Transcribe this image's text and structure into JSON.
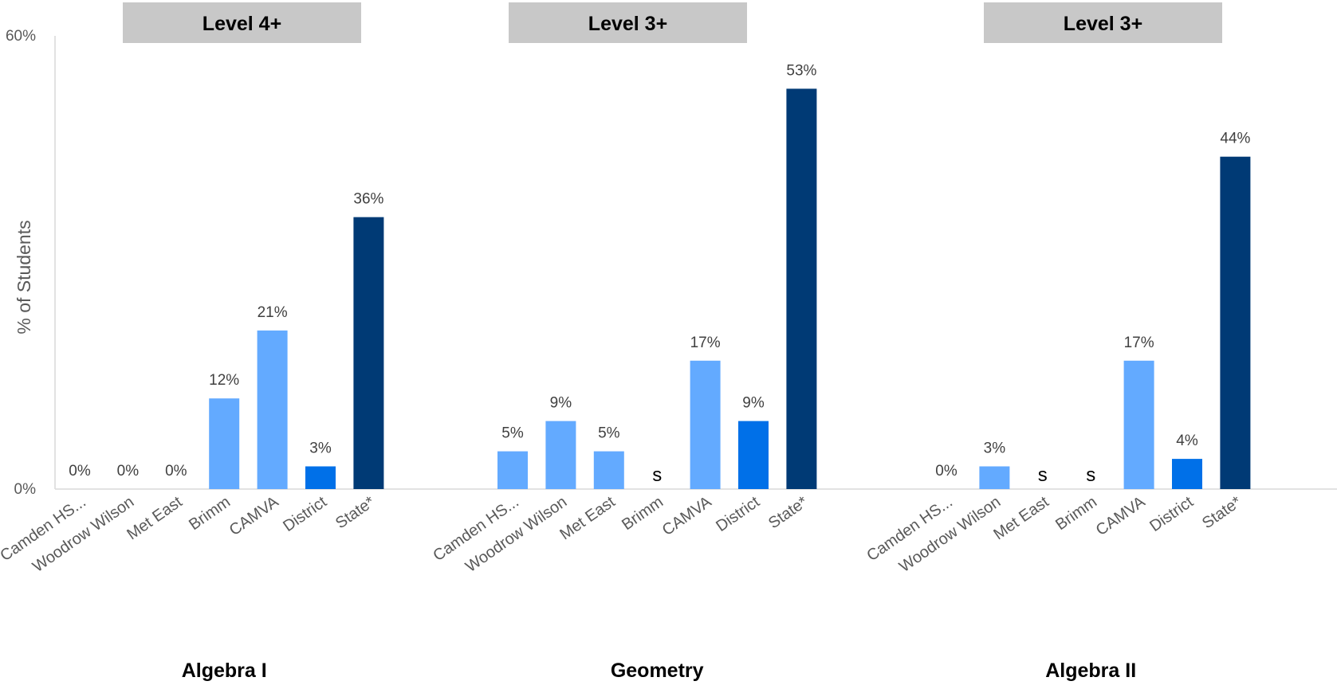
{
  "chart_data": {
    "type": "bar",
    "ylabel": "% of Students",
    "ylim": [
      0,
      60
    ],
    "yticks": [
      "0%",
      "60%"
    ],
    "grid": false,
    "legend": "none",
    "colors": {
      "school": "#63AAFF",
      "district": "#0070E8",
      "state": "#003A75",
      "level_box": "#C8C8C8"
    },
    "groups": [
      {
        "name": "Algebra I",
        "level": "Level 4+",
        "categories": [
          "Camden HS...",
          "Woodrow Wilson",
          "Met East",
          "Brimm",
          "CAMVA",
          "District",
          "State*"
        ],
        "values": [
          0,
          0,
          0,
          12,
          21,
          3,
          36
        ],
        "labels": [
          "0%",
          "0%",
          "0%",
          "12%",
          "21%",
          "3%",
          "36%"
        ],
        "kinds": [
          "school",
          "school",
          "school",
          "school",
          "school",
          "district",
          "state"
        ]
      },
      {
        "name": "Geometry",
        "level": "Level 3+",
        "categories": [
          "Camden HS...",
          "Woodrow Wilson",
          "Met East",
          "Brimm",
          "CAMVA",
          "District",
          "State*"
        ],
        "values": [
          5,
          9,
          5,
          null,
          17,
          9,
          53
        ],
        "labels": [
          "5%",
          "9%",
          "5%",
          "s",
          "17%",
          "9%",
          "53%"
        ],
        "kinds": [
          "school",
          "school",
          "school",
          "school",
          "school",
          "district",
          "state"
        ]
      },
      {
        "name": "Algebra II",
        "level": "Level 3+",
        "categories": [
          "Camden HS...",
          "Woodrow Wilson",
          "Met East",
          "Brimm",
          "CAMVA",
          "District",
          "State*"
        ],
        "values": [
          0,
          3,
          null,
          null,
          17,
          4,
          44
        ],
        "labels": [
          "0%",
          "3%",
          "s",
          "s",
          "17%",
          "4%",
          "44%"
        ],
        "kinds": [
          "school",
          "school",
          "school",
          "school",
          "school",
          "district",
          "state"
        ]
      }
    ]
  }
}
